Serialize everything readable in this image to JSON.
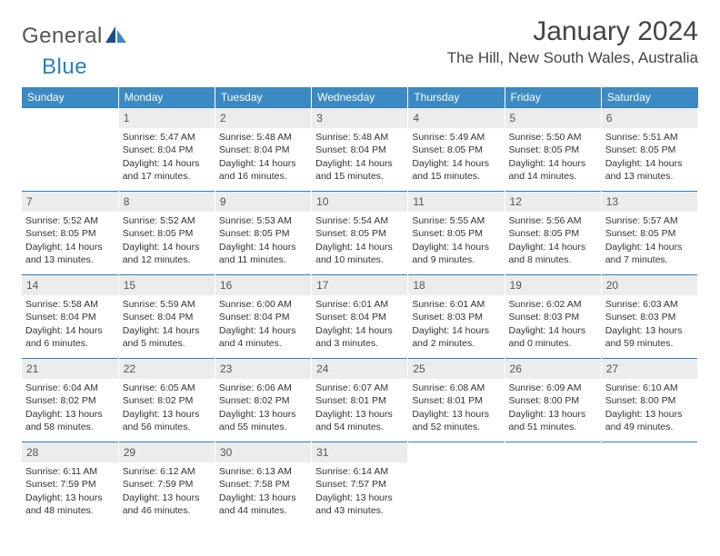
{
  "brand": {
    "general": "General",
    "blue": "Blue"
  },
  "title": "January 2024",
  "location": "The Hill, New South Wales, Australia",
  "colors": {
    "header_bg": "#3b8ac4",
    "accent": "#2a7fbf",
    "date_bg": "#ececec",
    "text": "#333333",
    "page_bg": "#ffffff"
  },
  "day_names": [
    "Sunday",
    "Monday",
    "Tuesday",
    "Wednesday",
    "Thursday",
    "Friday",
    "Saturday"
  ],
  "weeks": [
    [
      null,
      {
        "d": "1",
        "sr": "Sunrise: 5:47 AM",
        "ss": "Sunset: 8:04 PM",
        "dl1": "Daylight: 14 hours",
        "dl2": "and 17 minutes."
      },
      {
        "d": "2",
        "sr": "Sunrise: 5:48 AM",
        "ss": "Sunset: 8:04 PM",
        "dl1": "Daylight: 14 hours",
        "dl2": "and 16 minutes."
      },
      {
        "d": "3",
        "sr": "Sunrise: 5:48 AM",
        "ss": "Sunset: 8:04 PM",
        "dl1": "Daylight: 14 hours",
        "dl2": "and 15 minutes."
      },
      {
        "d": "4",
        "sr": "Sunrise: 5:49 AM",
        "ss": "Sunset: 8:05 PM",
        "dl1": "Daylight: 14 hours",
        "dl2": "and 15 minutes."
      },
      {
        "d": "5",
        "sr": "Sunrise: 5:50 AM",
        "ss": "Sunset: 8:05 PM",
        "dl1": "Daylight: 14 hours",
        "dl2": "and 14 minutes."
      },
      {
        "d": "6",
        "sr": "Sunrise: 5:51 AM",
        "ss": "Sunset: 8:05 PM",
        "dl1": "Daylight: 14 hours",
        "dl2": "and 13 minutes."
      }
    ],
    [
      {
        "d": "7",
        "sr": "Sunrise: 5:52 AM",
        "ss": "Sunset: 8:05 PM",
        "dl1": "Daylight: 14 hours",
        "dl2": "and 13 minutes."
      },
      {
        "d": "8",
        "sr": "Sunrise: 5:52 AM",
        "ss": "Sunset: 8:05 PM",
        "dl1": "Daylight: 14 hours",
        "dl2": "and 12 minutes."
      },
      {
        "d": "9",
        "sr": "Sunrise: 5:53 AM",
        "ss": "Sunset: 8:05 PM",
        "dl1": "Daylight: 14 hours",
        "dl2": "and 11 minutes."
      },
      {
        "d": "10",
        "sr": "Sunrise: 5:54 AM",
        "ss": "Sunset: 8:05 PM",
        "dl1": "Daylight: 14 hours",
        "dl2": "and 10 minutes."
      },
      {
        "d": "11",
        "sr": "Sunrise: 5:55 AM",
        "ss": "Sunset: 8:05 PM",
        "dl1": "Daylight: 14 hours",
        "dl2": "and 9 minutes."
      },
      {
        "d": "12",
        "sr": "Sunrise: 5:56 AM",
        "ss": "Sunset: 8:05 PM",
        "dl1": "Daylight: 14 hours",
        "dl2": "and 8 minutes."
      },
      {
        "d": "13",
        "sr": "Sunrise: 5:57 AM",
        "ss": "Sunset: 8:05 PM",
        "dl1": "Daylight: 14 hours",
        "dl2": "and 7 minutes."
      }
    ],
    [
      {
        "d": "14",
        "sr": "Sunrise: 5:58 AM",
        "ss": "Sunset: 8:04 PM",
        "dl1": "Daylight: 14 hours",
        "dl2": "and 6 minutes."
      },
      {
        "d": "15",
        "sr": "Sunrise: 5:59 AM",
        "ss": "Sunset: 8:04 PM",
        "dl1": "Daylight: 14 hours",
        "dl2": "and 5 minutes."
      },
      {
        "d": "16",
        "sr": "Sunrise: 6:00 AM",
        "ss": "Sunset: 8:04 PM",
        "dl1": "Daylight: 14 hours",
        "dl2": "and 4 minutes."
      },
      {
        "d": "17",
        "sr": "Sunrise: 6:01 AM",
        "ss": "Sunset: 8:04 PM",
        "dl1": "Daylight: 14 hours",
        "dl2": "and 3 minutes."
      },
      {
        "d": "18",
        "sr": "Sunrise: 6:01 AM",
        "ss": "Sunset: 8:03 PM",
        "dl1": "Daylight: 14 hours",
        "dl2": "and 2 minutes."
      },
      {
        "d": "19",
        "sr": "Sunrise: 6:02 AM",
        "ss": "Sunset: 8:03 PM",
        "dl1": "Daylight: 14 hours",
        "dl2": "and 0 minutes."
      },
      {
        "d": "20",
        "sr": "Sunrise: 6:03 AM",
        "ss": "Sunset: 8:03 PM",
        "dl1": "Daylight: 13 hours",
        "dl2": "and 59 minutes."
      }
    ],
    [
      {
        "d": "21",
        "sr": "Sunrise: 6:04 AM",
        "ss": "Sunset: 8:02 PM",
        "dl1": "Daylight: 13 hours",
        "dl2": "and 58 minutes."
      },
      {
        "d": "22",
        "sr": "Sunrise: 6:05 AM",
        "ss": "Sunset: 8:02 PM",
        "dl1": "Daylight: 13 hours",
        "dl2": "and 56 minutes."
      },
      {
        "d": "23",
        "sr": "Sunrise: 6:06 AM",
        "ss": "Sunset: 8:02 PM",
        "dl1": "Daylight: 13 hours",
        "dl2": "and 55 minutes."
      },
      {
        "d": "24",
        "sr": "Sunrise: 6:07 AM",
        "ss": "Sunset: 8:01 PM",
        "dl1": "Daylight: 13 hours",
        "dl2": "and 54 minutes."
      },
      {
        "d": "25",
        "sr": "Sunrise: 6:08 AM",
        "ss": "Sunset: 8:01 PM",
        "dl1": "Daylight: 13 hours",
        "dl2": "and 52 minutes."
      },
      {
        "d": "26",
        "sr": "Sunrise: 6:09 AM",
        "ss": "Sunset: 8:00 PM",
        "dl1": "Daylight: 13 hours",
        "dl2": "and 51 minutes."
      },
      {
        "d": "27",
        "sr": "Sunrise: 6:10 AM",
        "ss": "Sunset: 8:00 PM",
        "dl1": "Daylight: 13 hours",
        "dl2": "and 49 minutes."
      }
    ],
    [
      {
        "d": "28",
        "sr": "Sunrise: 6:11 AM",
        "ss": "Sunset: 7:59 PM",
        "dl1": "Daylight: 13 hours",
        "dl2": "and 48 minutes."
      },
      {
        "d": "29",
        "sr": "Sunrise: 6:12 AM",
        "ss": "Sunset: 7:59 PM",
        "dl1": "Daylight: 13 hours",
        "dl2": "and 46 minutes."
      },
      {
        "d": "30",
        "sr": "Sunrise: 6:13 AM",
        "ss": "Sunset: 7:58 PM",
        "dl1": "Daylight: 13 hours",
        "dl2": "and 44 minutes."
      },
      {
        "d": "31",
        "sr": "Sunrise: 6:14 AM",
        "ss": "Sunset: 7:57 PM",
        "dl1": "Daylight: 13 hours",
        "dl2": "and 43 minutes."
      },
      null,
      null,
      null
    ]
  ]
}
